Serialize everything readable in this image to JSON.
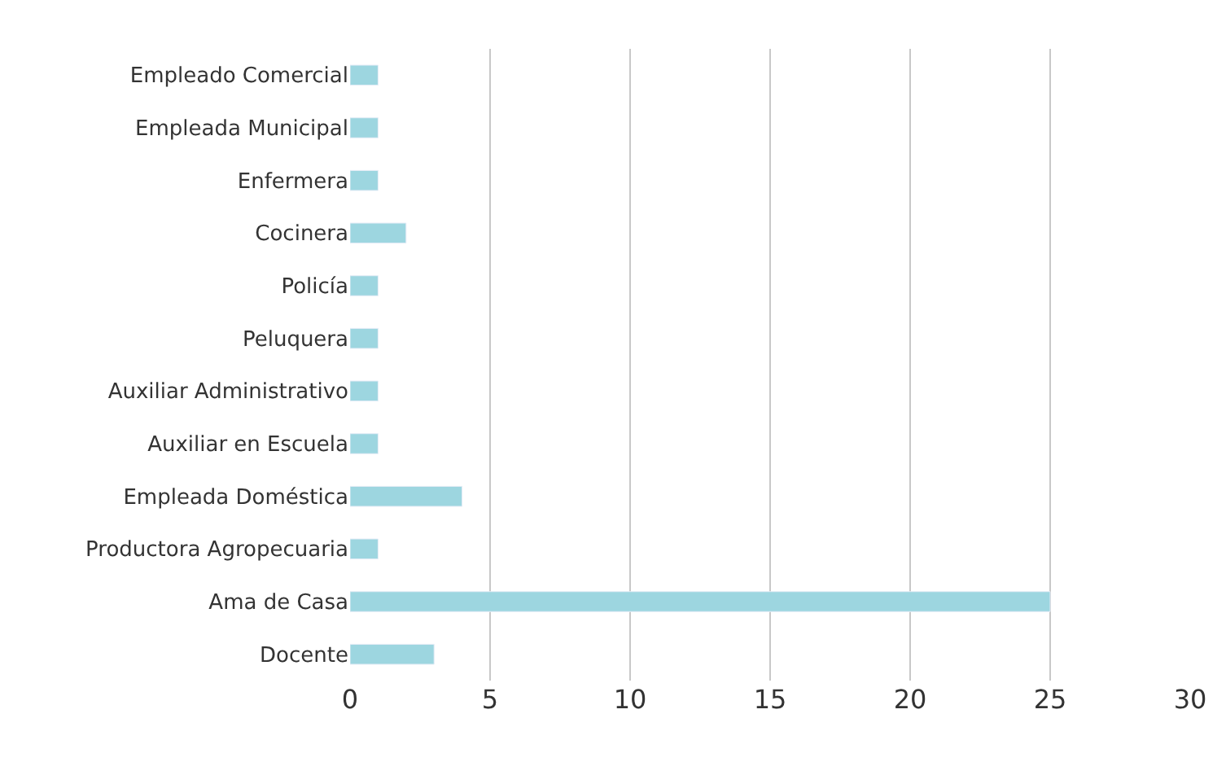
{
  "chart_data": {
    "type": "bar",
    "orientation": "horizontal",
    "categories": [
      "Empleado Comercial",
      "Empleada Municipal",
      "Enfermera",
      "Cocinera",
      "Policía",
      "Peluquera",
      "Auxiliar Administrativo",
      "Auxiliar en Escuela",
      "Empleada Doméstica",
      "Productora Agropecuaria",
      "Ama de Casa",
      "Docente"
    ],
    "values": [
      1,
      1,
      1,
      2,
      1,
      1,
      1,
      1,
      4,
      1,
      25,
      3
    ],
    "color": "#9dd6e0",
    "xlim": [
      0,
      30
    ],
    "xticks": [
      0,
      5,
      10,
      15,
      20,
      25,
      30
    ],
    "grid": "x"
  }
}
